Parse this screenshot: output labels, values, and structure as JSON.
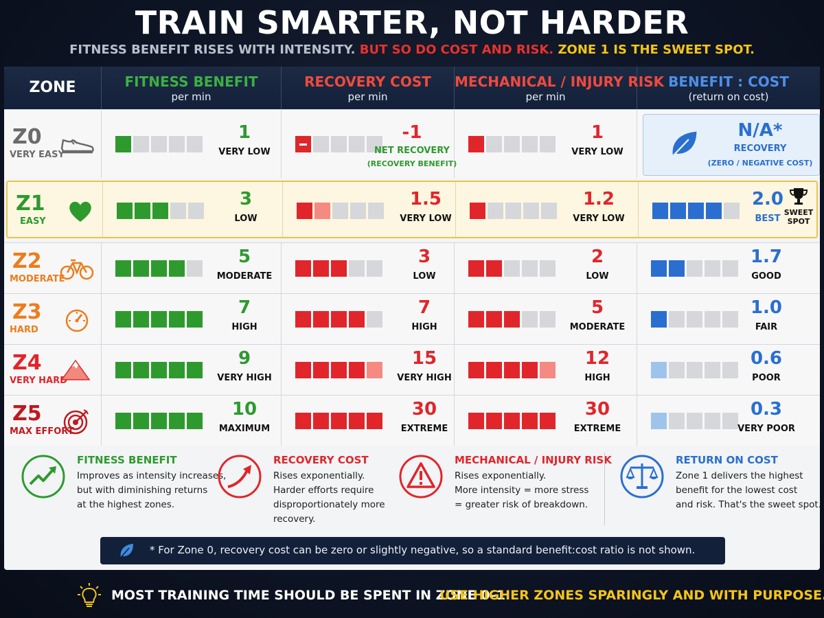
{
  "title": "TRAIN SMARTER, NOT HARDER",
  "subtitle": {
    "part1": "FITNESS BENEFIT RISES WITH INTENSITY.",
    "part2": "BUT SO DO COST AND RISK.",
    "part3": "ZONE 1 IS THE SWEET SPOT."
  },
  "headers": {
    "zone": "ZONE",
    "fitness": {
      "title": "FITNESS BENEFIT",
      "sub": "per min"
    },
    "recovery": {
      "title": "RECOVERY COST",
      "sub": "per min"
    },
    "risk": {
      "title": "MECHANICAL / INJURY RISK",
      "sub": "per min"
    },
    "ratio": {
      "title": "BENEFIT : COST",
      "sub": "(return on cost)"
    }
  },
  "colors": {
    "fitness": "#2e9a2e",
    "recovery": "#e0262b",
    "risk": "#e0262b",
    "ratio": "#2a6fd0",
    "z0": "#6b6b6b",
    "z1": "#2e9a2e",
    "z2": "#ec7d1c",
    "z3": "#ec7d1c",
    "z4": "#e0262b",
    "z5": "#c0191e"
  },
  "zones": [
    {
      "id": "Z0",
      "name": "VERY EASY",
      "icon": "shoe-icon",
      "fitness": {
        "value": "1",
        "label": "VERY LOW",
        "level": 1
      },
      "recovery": {
        "value": "-1",
        "label": "NET RECOVERY",
        "note": "(RECOVERY BENEFIT)",
        "level": 1,
        "negative": true
      },
      "risk": {
        "value": "1",
        "label": "VERY LOW",
        "level": 1
      },
      "ratio": {
        "value": "N/A*",
        "label": "RECOVERY",
        "note": "(ZERO / NEGATIVE COST)",
        "icon": "leaf-icon"
      }
    },
    {
      "id": "Z1",
      "name": "EASY",
      "icon": "heart-icon",
      "fitness": {
        "value": "3",
        "label": "LOW",
        "level": 3
      },
      "recovery": {
        "value": "1.5",
        "label": "VERY LOW",
        "level": 1.5
      },
      "risk": {
        "value": "1.2",
        "label": "VERY LOW",
        "level": 1
      },
      "ratio": {
        "value": "2.0",
        "label": "BEST",
        "level": 4,
        "badge": "SWEET SPOT",
        "icon": "trophy-icon"
      }
    },
    {
      "id": "Z2",
      "name": "MODERATE",
      "icon": "bike-icon",
      "fitness": {
        "value": "5",
        "label": "MODERATE",
        "level": 4
      },
      "recovery": {
        "value": "3",
        "label": "LOW",
        "level": 3
      },
      "risk": {
        "value": "2",
        "label": "LOW",
        "level": 2
      },
      "ratio": {
        "value": "1.7",
        "label": "GOOD",
        "level": 2
      }
    },
    {
      "id": "Z3",
      "name": "HARD",
      "icon": "gauge-icon",
      "fitness": {
        "value": "7",
        "label": "HIGH",
        "level": 5
      },
      "recovery": {
        "value": "7",
        "label": "HIGH",
        "level": 4
      },
      "risk": {
        "value": "5",
        "label": "MODERATE",
        "level": 3
      },
      "ratio": {
        "value": "1.0",
        "label": "FAIR",
        "level": 1
      }
    },
    {
      "id": "Z4",
      "name": "VERY HARD",
      "icon": "mountain-icon",
      "fitness": {
        "value": "9",
        "label": "VERY HIGH",
        "level": 5
      },
      "recovery": {
        "value": "15",
        "label": "VERY HIGH",
        "level": 4.5
      },
      "risk": {
        "value": "12",
        "label": "HIGH",
        "level": 4.5
      },
      "ratio": {
        "value": "0.6",
        "label": "POOR",
        "level": 0.7
      }
    },
    {
      "id": "Z5",
      "name": "MAX EFFORT",
      "icon": "target-icon",
      "fitness": {
        "value": "10",
        "label": "MAXIMUM",
        "level": 5
      },
      "recovery": {
        "value": "30",
        "label": "EXTREME",
        "level": 5
      },
      "risk": {
        "value": "30",
        "label": "EXTREME",
        "level": 5
      },
      "ratio": {
        "value": "0.3",
        "label": "VERY POOR",
        "level": 0.4
      }
    }
  ],
  "legend": [
    {
      "title": "FITNESS BENEFIT",
      "icon": "trend-up-icon",
      "lines": [
        "Improves as intensity increases,",
        "but with diminishing returns",
        "at the highest zones."
      ]
    },
    {
      "title": "RECOVERY COST",
      "icon": "rising-arrow-icon",
      "lines": [
        "Rises exponentially.",
        "Harder efforts require",
        "disproportionately more",
        "recovery."
      ]
    },
    {
      "title": "MECHANICAL / INJURY RISK",
      "icon": "warning-icon",
      "lines": [
        "Rises exponentially.",
        "More intensity = more stress",
        "= greater risk of breakdown."
      ]
    },
    {
      "title": "RETURN ON COST",
      "icon": "scales-icon",
      "lines": [
        "Zone 1 delivers the highest",
        "benefit for the lowest cost",
        "and risk. That's the sweet spot."
      ]
    }
  ],
  "note": "* For Zone 0, recovery cost can be zero or slightly negative, so a standard benefit:cost ratio is not shown.",
  "footer": {
    "part1": "MOST TRAINING TIME SHOULD BE SPENT IN ZONE 0–1.",
    "part2": "USE HIGHER ZONES SPARINGLY AND WITH PURPOSE."
  }
}
